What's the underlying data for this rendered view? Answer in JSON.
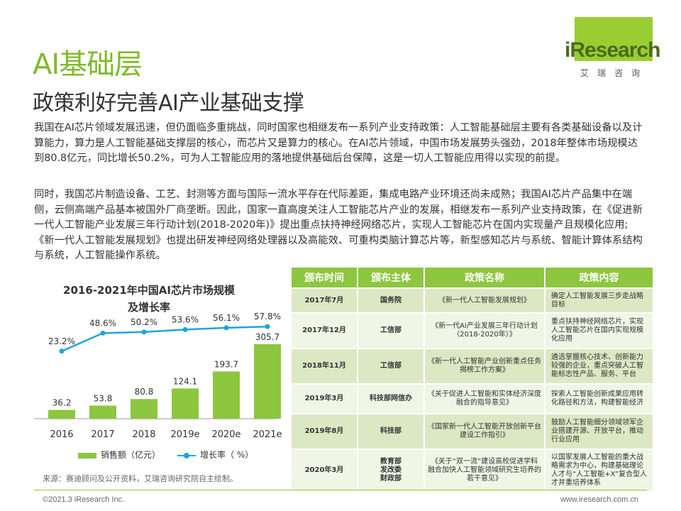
{
  "header": {
    "title": "AI基础层",
    "subtitle": "政策利好完善AI产业基础支撑"
  },
  "logo": {
    "brand": "iResearch",
    "cn": "艾瑞咨询"
  },
  "body": {
    "paragraph1": "我国在AI芯片领域发展迅速，但仍面临多重挑战，同时国家也相继发布一系列产业支持政策：人工智能基础层主要有各类基础设备以及计算能力，算力是人工智能基础支撑层的核心，而芯片又是算力的核心。在AI芯片领域，中国市场发展势头强劲，2018年整体市场规模达到80.8亿元，同比增长50.2%，可为人工智能应用的落地提供基础后台保障，这是一切人工智能应用得以实现的前提。",
    "paragraph2": "同时，我国芯片制造设备、工艺、封测等方面与国际一流水平存在代际差距，集成电路产业环境还尚未成熟；我国AI芯片产品集中在端侧，云侧高端产品基本被国外厂商垄断。因此，国家一直高度关注人工智能芯片产业的发展，相继发布一系列产业支持政策，在《促进新一代人工智能产业发展三年行动计划(2018-2020年)》提出重点扶持神经网络芯片，实现人工智能芯片在国内实现量产且规模化应用;《新一代人工智能发展规划》也提出研发神经网络处理器以及高能效、可重构类脑计算芯片等，新型感知芯片与系统、智能计算体系结构与系统，人工智能操作系统。"
  },
  "chart_data": {
    "type": "bar",
    "title_line1": "2016-2021年中国AI芯片市场规模",
    "title_line2": "及增长率",
    "categories": [
      "2016",
      "2017",
      "2018",
      "2019e",
      "2020e",
      "2021e"
    ],
    "series": [
      {
        "name": "销售额（亿元）",
        "type": "bar",
        "values": [
          36.2,
          53.8,
          80.8,
          124.1,
          193.7,
          305.7
        ],
        "color": "#8dc63f"
      },
      {
        "name": "增长率（ %）",
        "type": "line",
        "values": [
          23.2,
          48.6,
          50.2,
          53.6,
          56.1,
          57.8
        ],
        "color": "#1fa4dd"
      }
    ],
    "bar_labels": [
      "36.2",
      "53.8",
      "80.8",
      "124.1",
      "193.7",
      "305.7"
    ],
    "line_labels": [
      "23.2%",
      "48.6%",
      "50.2%",
      "53.6%",
      "56.1%",
      "57.8%"
    ],
    "ylim_bar": [
      0,
      320
    ],
    "ylim_line": [
      0,
      60
    ],
    "grid": false,
    "legend_position": "bottom"
  },
  "legend": {
    "bar": "销售额（亿元）",
    "line": "增长率（ %）"
  },
  "source": "来源：赛迪顾问及公开资料，艾瑞咨询研究院自主绘制。",
  "table": {
    "headers": [
      "颁布时间",
      "颁布主体",
      "政策名称",
      "政策内容"
    ],
    "rows": [
      {
        "time": "2017年7月",
        "org": "国务院",
        "name": "《新一代人工智能发展规划》",
        "content": "确定人工智能发展三步走战略目标"
      },
      {
        "time": "2017年12月",
        "org": "工信部",
        "name": "《新一代AI产业发展三年行动计划（2018-2020年）》",
        "content": "重点扶持神经网络芯片，实现人工智能芯片在国内实现规模化应用"
      },
      {
        "time": "2018年11月",
        "org": "工信部",
        "name": "《新一代人工智能产业创新重点任务揭榜工作方案》",
        "content": "遴选掌握核心技术、创新能力较强的企业，重点突破人工智能标志性产品、服务、平台"
      },
      {
        "time": "2019年3月",
        "org": "科技部网信办",
        "name": "《关于促进人工智能和实体经济深度融合的指导意见》",
        "content": "探索人工智能创新成果应用转化路径和方法，构建智能经济"
      },
      {
        "time": "2019年8月",
        "org": "科技部",
        "name": "《国家新一代人工智能开放创新平台建设工作指引》",
        "content": "鼓励人工智能细分领域领军企业搭建开源、开放平台，推动行业应用"
      },
      {
        "time": "2020年3月",
        "org": "教育部\n发改委\n财政部",
        "name": "《关于“双一流”建设高校促进学科融合加快人工智能领域研究生培养的若干意见》",
        "content": "以国家发展人工智能的重大战略需求为中心，构建基础理论人才与“人工智能+X”复合型人才并重培养体系"
      }
    ]
  },
  "footer": {
    "copyright": "©2021.3 iResearch Inc.",
    "website": "www.iresearch.com.cn"
  }
}
